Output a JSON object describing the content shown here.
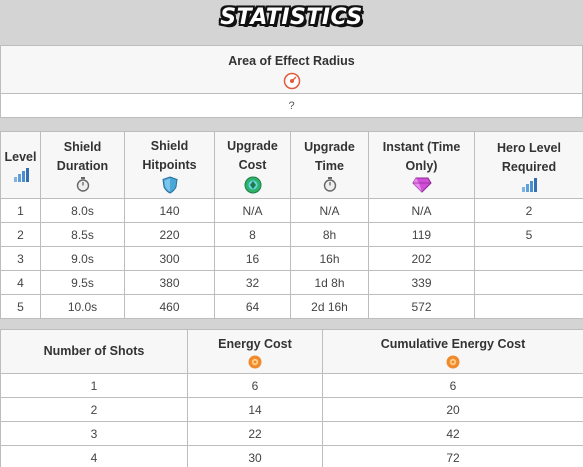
{
  "banner": {
    "title": "STATISTICS"
  },
  "aoe": {
    "header": "Area of Effect Radius",
    "icon": "radius-target-icon",
    "value": "?"
  },
  "stats": {
    "headers": {
      "level": "Level",
      "shield_duration": "Shield Duration",
      "shield_hitpoints": "Shield Hitpoints",
      "upgrade_cost": "Upgrade Cost",
      "upgrade_time": "Upgrade Time",
      "instant": "Instant (Time Only)",
      "hero_level": "Hero Level Required"
    },
    "icons": {
      "level": "level-bars-icon",
      "shield_duration": "stopwatch-icon",
      "shield_hitpoints": "shield-icon",
      "upgrade_cost": "upgrade-orb-icon",
      "upgrade_time": "stopwatch-icon",
      "instant": "gem-icon",
      "hero_level": "level-bars-icon"
    },
    "rows": [
      {
        "level": "1",
        "duration": "8.0s",
        "hitpoints": "140",
        "cost": "N/A",
        "time": "N/A",
        "instant": "N/A",
        "hero": "2"
      },
      {
        "level": "2",
        "duration": "8.5s",
        "hitpoints": "220",
        "cost": "8",
        "time": "8h",
        "instant": "119",
        "hero": "5"
      },
      {
        "level": "3",
        "duration": "9.0s",
        "hitpoints": "300",
        "cost": "16",
        "time": "16h",
        "instant": "202",
        "hero": ""
      },
      {
        "level": "4",
        "duration": "9.5s",
        "hitpoints": "380",
        "cost": "32",
        "time": "1d 8h",
        "instant": "339",
        "hero": ""
      },
      {
        "level": "5",
        "duration": "10.0s",
        "hitpoints": "460",
        "cost": "64",
        "time": "2d 16h",
        "instant": "572",
        "hero": ""
      }
    ]
  },
  "energy": {
    "headers": {
      "shots": "Number of Shots",
      "cost": "Energy Cost",
      "cumulative": "Cumulative Energy Cost"
    },
    "icons": {
      "cost": "energy-icon",
      "cumulative": "energy-icon"
    },
    "rows": [
      {
        "shots": "1",
        "cost": "6",
        "cumulative": "6"
      },
      {
        "shots": "2",
        "cost": "14",
        "cumulative": "20"
      },
      {
        "shots": "3",
        "cost": "22",
        "cumulative": "42"
      },
      {
        "shots": "4",
        "cost": "30",
        "cumulative": "72"
      }
    ]
  },
  "colors": {
    "background": "#d4d4d4",
    "header_bg": "#f7f7f7",
    "border": "#bdbdbd",
    "radius_icon": "#e05a3c",
    "shield_icon": "#4aa7d8",
    "gem_icon": "#d14fd8",
    "bars_icon": "#4a8fd0",
    "energy_icon": "#f08a2c",
    "upgrade_icon": "#2fb36a"
  }
}
